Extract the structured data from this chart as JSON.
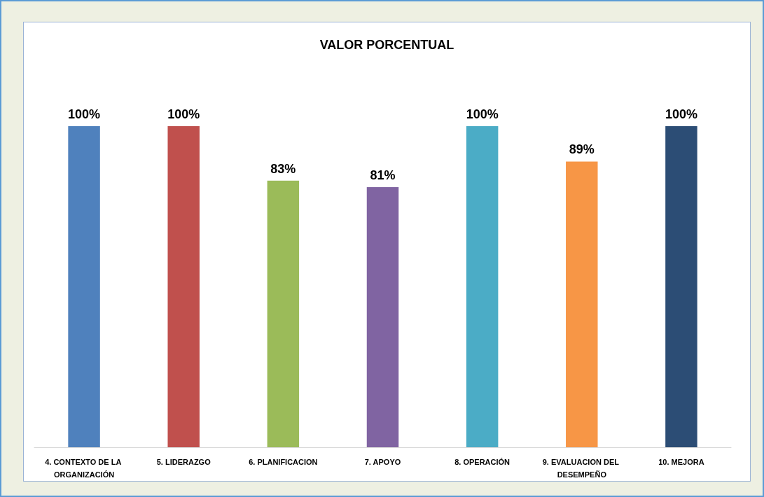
{
  "chart_data": {
    "type": "bar",
    "title": "VALOR PORCENTUAL",
    "categories": [
      "4. CONTEXTO DE LA ORGANIZACIÓN",
      "5. LIDERAZGO",
      "6. PLANIFICACION",
      "7. APOYO",
      "8. OPERACIÓN",
      "9. EVALUACION DEL DESEMPEÑO",
      "10. MEJORA"
    ],
    "values": [
      100,
      100,
      83,
      81,
      100,
      89,
      100
    ],
    "value_labels": [
      "100%",
      "100%",
      "83%",
      "81%",
      "100%",
      "89%",
      "100%"
    ],
    "colors": [
      "#4f81bd",
      "#c0504d",
      "#9bbb59",
      "#8064a2",
      "#4bacc6",
      "#f79646",
      "#2c4d75"
    ]
  }
}
